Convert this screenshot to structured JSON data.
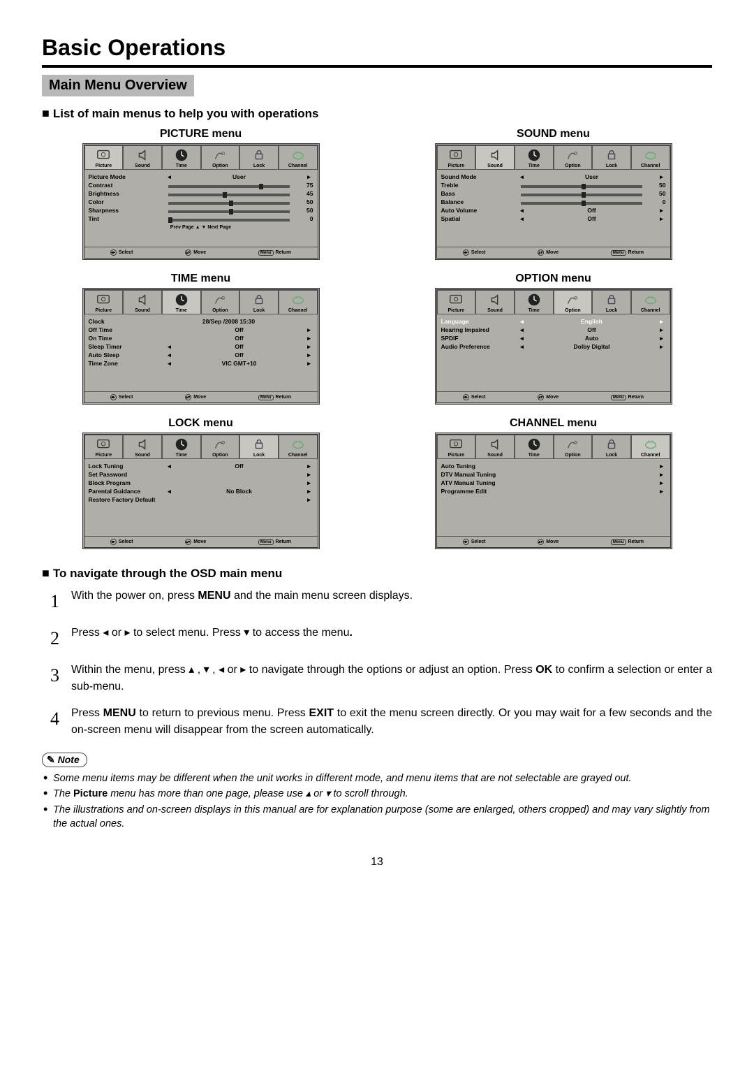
{
  "page": {
    "title": "Basic Operations",
    "section": "Main Menu Overview",
    "listHeading": "List of main menus to help you with operations",
    "navHeading": "To navigate through the OSD main menu",
    "pageNumber": "13"
  },
  "tabs": [
    "Picture",
    "Sound",
    "Time",
    "Option",
    "Lock",
    "Channel"
  ],
  "footer": {
    "select": "Select",
    "move": "Move",
    "menu": "Menu",
    "return": "Return"
  },
  "menus": {
    "picture": {
      "title": "PICTURE menu",
      "activeTab": 0,
      "rows": [
        {
          "type": "select",
          "label": "Picture Mode",
          "value": "User"
        },
        {
          "type": "slider",
          "label": "Contrast",
          "value": 75,
          "max": 100
        },
        {
          "type": "slider",
          "label": "Brightness",
          "value": 45,
          "max": 100
        },
        {
          "type": "slider",
          "label": "Color",
          "value": 50,
          "max": 100
        },
        {
          "type": "slider",
          "label": "Sharpness",
          "value": 50,
          "max": 100
        },
        {
          "type": "slider",
          "label": "Tint",
          "value": 0,
          "max": 100
        }
      ],
      "pageHint": "Prev  Page ▲   ▼ Next  Page"
    },
    "sound": {
      "title": "SOUND menu",
      "activeTab": 1,
      "rows": [
        {
          "type": "select",
          "label": "Sound Mode",
          "value": "User"
        },
        {
          "type": "slider",
          "label": "Treble",
          "value": 50,
          "max": 100
        },
        {
          "type": "slider",
          "label": "Bass",
          "value": 50,
          "max": 100
        },
        {
          "type": "slider",
          "label": "Balance",
          "value": 0,
          "max": 100,
          "center": true
        },
        {
          "type": "select",
          "label": "Auto Volume",
          "value": "Off"
        },
        {
          "type": "select",
          "label": "Spatial",
          "value": "Off"
        }
      ]
    },
    "time": {
      "title": "TIME menu",
      "activeTab": 2,
      "rows": [
        {
          "type": "text",
          "label": "Clock",
          "value": "28/Sep /2008 15:30"
        },
        {
          "type": "nav",
          "label": "Off Time",
          "value": "Off"
        },
        {
          "type": "nav",
          "label": "On Time",
          "value": "Off"
        },
        {
          "type": "select",
          "label": "Sleep Timer",
          "value": "Off"
        },
        {
          "type": "select",
          "label": "Auto Sleep",
          "value": "Off"
        },
        {
          "type": "select",
          "label": "Time Zone",
          "value": "VIC GMT+10"
        }
      ]
    },
    "option": {
      "title": "OPTION menu",
      "activeTab": 3,
      "rows": [
        {
          "type": "select",
          "label": "Language",
          "value": "English",
          "highlight": true
        },
        {
          "type": "select",
          "label": "Hearing Impaired",
          "value": "Off"
        },
        {
          "type": "select",
          "label": "SPDIF",
          "value": "Auto"
        },
        {
          "type": "select",
          "label": "Audio Preference",
          "value": "Dolby Digital"
        }
      ]
    },
    "lock": {
      "title": "LOCK menu",
      "activeTab": 4,
      "rows": [
        {
          "type": "select",
          "label": "Lock Tuning",
          "value": "Off"
        },
        {
          "type": "nav",
          "label": "Set Password",
          "value": ""
        },
        {
          "type": "nav",
          "label": "Block Program",
          "value": ""
        },
        {
          "type": "select",
          "label": "Parental Guidance",
          "value": "No Block"
        },
        {
          "type": "nav",
          "label": "Restore Factory Default",
          "value": ""
        }
      ]
    },
    "channel": {
      "title": "CHANNEL menu",
      "activeTab": 5,
      "rows": [
        {
          "type": "nav",
          "label": "Auto Tuning",
          "value": ""
        },
        {
          "type": "nav",
          "label": "DTV Manual Tuning",
          "value": ""
        },
        {
          "type": "nav",
          "label": "ATV Manual Tuning",
          "value": ""
        },
        {
          "type": "nav",
          "label": "Programme Edit",
          "value": ""
        }
      ]
    }
  },
  "steps": [
    "With the power on, press <b>MENU</b> and the main menu screen displays.",
    "Press ◂ or ▸ to select menu.  Press ▾ to access the menu<b>.</b>",
    "Within the menu, press ▴ , ▾ , ◂ or ▸ to navigate through the options or adjust an option. Press <b>OK</b> to confirm a selection or enter a sub-menu.",
    "Press <b>MENU</b> to return to previous menu. Press <b>EXIT</b> to exit the menu screen directly. Or you may wait for a few seconds and the on-screen menu will disappear from the screen automatically."
  ],
  "noteLabel": "Note",
  "notes": [
    "Some menu items may be different when the unit works in different mode, and menu items that are not selectable are grayed out.",
    "The <b>Picture</b> menu has more than one page, please use ▴ or ▾ to scroll through.",
    "The illustrations and on-screen displays in this manual are for explanation purpose (some are enlarged, others cropped) and may vary slightly from the actual ones."
  ],
  "colors": {
    "osd_bg": "#b0aea8",
    "highlight_text": "#ffffff",
    "section_bar_bg": "#b8b8b8"
  }
}
